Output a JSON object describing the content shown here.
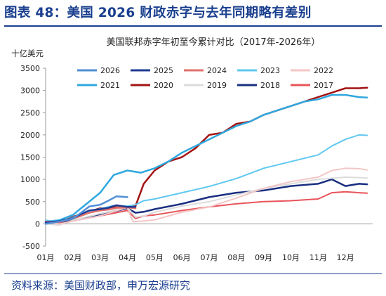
{
  "figure": {
    "title": "图表 48：美国 2026 财政赤字与去年同期略有差别",
    "source": "资料来源：美国财政部，申万宏源研究"
  },
  "chart_data": {
    "type": "line",
    "title": "美国联邦赤字年初至今累计对比（2017年-2026年）",
    "ylabel": "十亿美元",
    "xlabel": "",
    "ylim": [
      -500,
      3500
    ],
    "yticks": [
      -500,
      0,
      500,
      1000,
      1500,
      2000,
      2500,
      3000,
      3500
    ],
    "xlim": [
      1,
      13
    ],
    "x_tick_labels": [
      "01月",
      "02月",
      "03月",
      "04月",
      "05月",
      "06月",
      "07月",
      "08月",
      "09月",
      "10月",
      "11月",
      "12月"
    ],
    "grid": false,
    "legend_position": "top",
    "series": [
      {
        "name": "2026",
        "color": "#4f8fd6",
        "width": 2.5,
        "x": [
          1.0,
          1.5,
          2.0,
          2.3,
          2.6,
          3.0,
          3.3,
          3.6,
          4.0
        ],
        "y": [
          0,
          50,
          120,
          250,
          390,
          430,
          520,
          620,
          600
        ]
      },
      {
        "name": "2025",
        "color": "#1f3a93",
        "width": 2.5,
        "x": [
          1.0,
          1.5,
          2.0,
          2.3,
          2.6,
          3.0,
          3.3,
          3.6,
          4.0,
          4.3
        ],
        "y": [
          30,
          60,
          130,
          220,
          300,
          330,
          360,
          420,
          380,
          380
        ]
      },
      {
        "name": "2024",
        "color": "#e0706c",
        "width": 2.5,
        "x": [
          1.0,
          1.5,
          2.0,
          2.3,
          2.6,
          3.0,
          3.3,
          3.6,
          4.0,
          4.3
        ],
        "y": [
          50,
          40,
          120,
          180,
          250,
          300,
          320,
          360,
          370,
          350
        ]
      },
      {
        "name": "2023",
        "color": "#5fc8f0",
        "width": 2,
        "x": [
          1,
          1.5,
          2,
          2.5,
          3,
          3.5,
          4,
          4.3,
          4.6,
          5,
          6,
          7,
          8,
          9,
          10,
          11,
          11.5,
          12,
          12.5,
          12.8
        ],
        "y": [
          80,
          40,
          150,
          260,
          340,
          410,
          400,
          430,
          520,
          560,
          700,
          840,
          1020,
          1250,
          1400,
          1550,
          1750,
          1900,
          2000,
          1990
        ]
      },
      {
        "name": "2022",
        "color": "#f4c6c6",
        "width": 2,
        "x": [
          1,
          1.5,
          2,
          3,
          4,
          4.2,
          4.5,
          5,
          6,
          7,
          8,
          9,
          10,
          11,
          11.5,
          12,
          12.5,
          12.8
        ],
        "y": [
          40,
          0,
          60,
          180,
          370,
          50,
          60,
          90,
          260,
          380,
          580,
          800,
          950,
          1050,
          1200,
          1250,
          1240,
          1210
        ]
      },
      {
        "name": "2021",
        "color": "#2fa8de",
        "width": 2.5,
        "x": [
          1,
          1.5,
          2,
          2.5,
          3,
          3.5,
          4,
          4.5,
          5,
          5.5,
          6,
          6.5,
          7,
          7.5,
          8,
          8.5,
          9,
          9.5,
          10,
          10.5,
          11,
          11.5,
          12,
          12.5,
          12.8
        ],
        "y": [
          50,
          80,
          200,
          450,
          700,
          1100,
          1200,
          1150,
          1250,
          1400,
          1600,
          1750,
          1900,
          2050,
          2200,
          2300,
          2450,
          2550,
          2650,
          2750,
          2800,
          2900,
          2900,
          2850,
          2840
        ]
      },
      {
        "name": "2020",
        "color": "#a31212",
        "width": 2.5,
        "x": [
          1,
          1.5,
          2,
          3,
          4,
          4.3,
          4.6,
          5,
          5.5,
          6,
          6.5,
          7,
          7.5,
          8,
          8.5,
          9,
          9.5,
          10,
          10.5,
          11,
          11.5,
          12,
          12.5,
          12.8
        ],
        "y": [
          50,
          20,
          160,
          350,
          390,
          400,
          900,
          1200,
          1400,
          1500,
          1700,
          2000,
          2050,
          2250,
          2300,
          2450,
          2550,
          2650,
          2750,
          2850,
          2950,
          3050,
          3050,
          3060
        ]
      },
      {
        "name": "2019",
        "color": "#dcdcdc",
        "width": 2,
        "x": [
          1,
          1.5,
          2,
          3,
          4,
          4.3,
          4.6,
          5,
          6,
          7,
          8,
          9,
          10,
          11,
          12,
          12.5,
          12.8
        ],
        "y": [
          0,
          -30,
          80,
          230,
          370,
          150,
          180,
          260,
          400,
          500,
          650,
          800,
          900,
          1000,
          1050,
          1040,
          1030
        ]
      },
      {
        "name": "2018",
        "color": "#1a2f80",
        "width": 2.5,
        "x": [
          1,
          1.5,
          2,
          3,
          4,
          4.3,
          4.6,
          5,
          6,
          7,
          8,
          9,
          10,
          11,
          11.5,
          12,
          12.5,
          12.8
        ],
        "y": [
          50,
          10,
          80,
          200,
          350,
          250,
          270,
          330,
          450,
          600,
          700,
          750,
          850,
          900,
          1000,
          850,
          900,
          890
        ]
      },
      {
        "name": "2017",
        "color": "#e8545a",
        "width": 2,
        "x": [
          1,
          1.5,
          2,
          3,
          4,
          4.3,
          4.6,
          5,
          6,
          7,
          8,
          9,
          10,
          11,
          11.5,
          12,
          12.5,
          12.8
        ],
        "y": [
          30,
          0,
          70,
          180,
          300,
          120,
          180,
          200,
          300,
          380,
          450,
          500,
          520,
          560,
          700,
          720,
          700,
          690
        ]
      }
    ]
  }
}
